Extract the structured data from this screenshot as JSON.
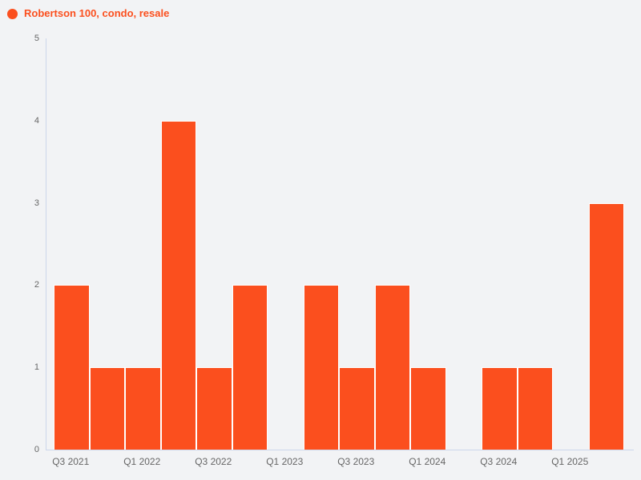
{
  "legend": {
    "label": "Robertson 100, condo, resale"
  },
  "colors": {
    "accent": "#fb4f1e",
    "background": "#f2f3f5",
    "axis_line": "#ccd6eb",
    "tick_label": "#666666",
    "bar_border": "#ffffff"
  },
  "chart_data": {
    "type": "bar",
    "title": "",
    "series_name": "Robertson 100, condo, resale",
    "categories": [
      "Q3 2021",
      "Q4 2021",
      "Q1 2022",
      "Q2 2022",
      "Q3 2022",
      "Q4 2022",
      "Q1 2023",
      "Q2 2023",
      "Q3 2023",
      "Q4 2023",
      "Q1 2024",
      "Q2 2024",
      "Q3 2024",
      "Q4 2024",
      "Q1 2025",
      "Q2 2025"
    ],
    "values": [
      2,
      1,
      1,
      4,
      1,
      2,
      0,
      2,
      1,
      2,
      1,
      0,
      1,
      1,
      0,
      3
    ],
    "xlabel": "",
    "ylabel": "",
    "ylim": [
      0,
      5
    ],
    "y_ticks": [
      0,
      1,
      2,
      3,
      4,
      5
    ],
    "x_tick_labels": [
      "Q3 2021",
      "Q1 2022",
      "Q3 2022",
      "Q1 2023",
      "Q3 2023",
      "Q1 2024",
      "Q3 2024",
      "Q1 2025"
    ],
    "x_tick_every": 2,
    "grid": false,
    "legend_position": "top-left"
  }
}
